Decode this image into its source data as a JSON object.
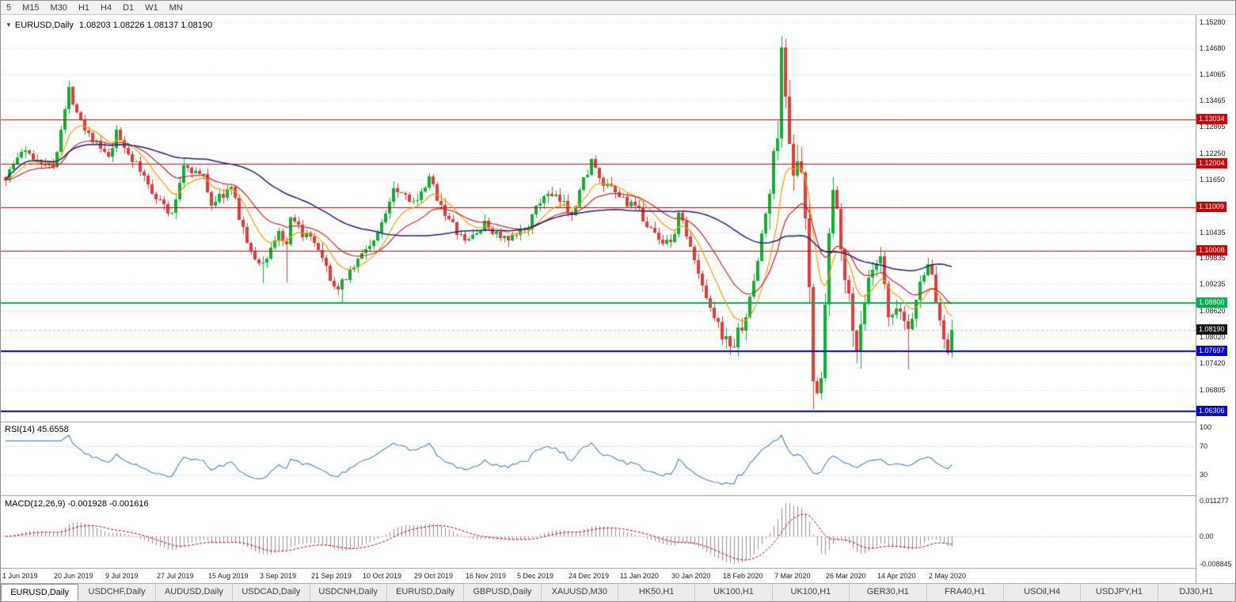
{
  "toolbar": {
    "timeframes": [
      "5",
      "M15",
      "M30",
      "H1",
      "H4",
      "D1",
      "W1",
      "MN"
    ]
  },
  "chart_header": {
    "collapse_arrow": "▼",
    "symbol": "EURUSD,Daily",
    "ohlc": "1.08203 1.08226 1.08137 1.08190"
  },
  "rsi_panel": {
    "label": "RSI(14)",
    "value": "45.6558",
    "scale": [
      "100",
      "70",
      "30"
    ]
  },
  "macd_panel": {
    "label": "MACD(12,26,9)",
    "values": "-0.001928 -0.001616",
    "scale": [
      "0.011277",
      "0.00",
      "-0.008845"
    ]
  },
  "price_scale": {
    "ticks": [
      "1.15280",
      "1.14680",
      "1.14065",
      "1.13465",
      "1.12865",
      "1.12250",
      "1.11650",
      "1.10435",
      "1.09835",
      "1.09235",
      "1.08620",
      "1.08020",
      "1.07420",
      "1.06805"
    ],
    "badges": [
      {
        "text": "1.13034",
        "bg": "#cc0000"
      },
      {
        "text": "1.12004",
        "bg": "#cc0000"
      },
      {
        "text": "1.11009",
        "bg": "#cc0000"
      },
      {
        "text": "1.10008",
        "bg": "#cc0000"
      },
      {
        "text": "1.08800",
        "bg": "#00b050"
      },
      {
        "text": "1.08190",
        "bg": "#151515"
      },
      {
        "text": "1.07697",
        "bg": "#0000d0"
      },
      {
        "text": "1.06306",
        "bg": "#0000d0"
      }
    ]
  },
  "x_axis": {
    "labels": [
      [
        "1 Jun 2019",
        0
      ],
      [
        "20 Jun 2019",
        13
      ],
      [
        "9 Jul 2019",
        26
      ],
      [
        "27 Jul 2019",
        39
      ],
      [
        "15 Aug 2019",
        52
      ],
      [
        "3 Sep 2019",
        65
      ],
      [
        "21 Sep 2019",
        78
      ],
      [
        "10 Oct 2019",
        91
      ],
      [
        "29 Oct 2019",
        104
      ],
      [
        "16 Nov 2019",
        117
      ],
      [
        "5 Dec 2019",
        130
      ],
      [
        "24 Dec 2019",
        143
      ],
      [
        "11 Jan 2020",
        156
      ],
      [
        "30 Jan 2020",
        169
      ],
      [
        "18 Feb 2020",
        182
      ],
      [
        "7 Mar 2020",
        195
      ],
      [
        "26 Mar 2020",
        208
      ],
      [
        "14 Apr 2020",
        221
      ],
      [
        "2 May 2020",
        234
      ]
    ]
  },
  "tab_bar": {
    "active_index": 0,
    "tabs": [
      "EURUSD,Daily",
      "USDCHF,Daily",
      "AUDUSD,Daily",
      "USDCAD,Daily",
      "USDCNH,Daily",
      "EURUSD,Daily",
      "GBPUSD,Daily",
      "XAUUSD,M30",
      "HK50,H1",
      "UK100,H1",
      "UK100,H1",
      "GER30,H1",
      "FRA40,H1",
      "USOil,H4",
      "USDJPY,H1",
      "DJ30,H1"
    ]
  },
  "chart_data": {
    "type": "candlestick",
    "symbol": "EURUSD",
    "timeframe": "Daily",
    "bid": 1.0819,
    "price_range": [
      1.0607,
      1.1542
    ],
    "macd_range": [
      -0.008845,
      0.011277
    ],
    "rsi_levels": [
      70,
      30
    ],
    "colors": {
      "up": "#0cb033",
      "down": "#e13b3b",
      "ma_fast": "#ff9c00",
      "ma_mid": "#cc2222",
      "ma_slow": "#1f1f7a",
      "rsi": "#4a86c8",
      "macd_hist": "#909090",
      "macd_signal": "#cc0000",
      "grid": "#d9d9d9",
      "level": "#c0c0c0"
    },
    "hlines": [
      {
        "price": 1.13034,
        "color": "#cc0000",
        "width": 1
      },
      {
        "price": 1.12004,
        "color": "#cc0000",
        "width": 1
      },
      {
        "price": 1.11009,
        "color": "#cc0000",
        "width": 1
      },
      {
        "price": 1.10008,
        "color": "#cc0000",
        "width": 1
      },
      {
        "price": 1.088,
        "color": "#00b050",
        "width": 2
      },
      {
        "price": 1.07697,
        "color": "#0000d0",
        "width": 2
      },
      {
        "price": 1.06306,
        "color": "#0000d0",
        "width": 2
      }
    ],
    "candles": {
      "count": 240,
      "anchors": [
        [
          0,
          1.117
        ],
        [
          4,
          1.123
        ],
        [
          12,
          1.1195
        ],
        [
          16,
          1.137
        ],
        [
          20,
          1.1285
        ],
        [
          26,
          1.121
        ],
        [
          28,
          1.127
        ],
        [
          37,
          1.114
        ],
        [
          42,
          1.108
        ],
        [
          45,
          1.12
        ],
        [
          50,
          1.117
        ],
        [
          52,
          1.111
        ],
        [
          57,
          1.1145
        ],
        [
          62,
          1.099
        ],
        [
          65,
          1.097
        ],
        [
          69,
          1.1045
        ],
        [
          71,
          1.1005
        ],
        [
          72,
          1.107
        ],
        [
          78,
          1.1015
        ],
        [
          84,
          1.09
        ],
        [
          85,
          1.093
        ],
        [
          91,
          1.1005
        ],
        [
          94,
          1.1035
        ],
        [
          98,
          1.115
        ],
        [
          104,
          1.111
        ],
        [
          107,
          1.1165
        ],
        [
          112,
          1.107
        ],
        [
          116,
          1.102
        ],
        [
          121,
          1.106
        ],
        [
          127,
          1.102
        ],
        [
          132,
          1.106
        ],
        [
          136,
          1.113
        ],
        [
          140,
          1.1115
        ],
        [
          143,
          1.109
        ],
        [
          148,
          1.121
        ],
        [
          150,
          1.116
        ],
        [
          156,
          1.112
        ],
        [
          160,
          1.109
        ],
        [
          165,
          1.1025
        ],
        [
          169,
          1.103
        ],
        [
          170,
          1.1095
        ],
        [
          175,
          1.0945
        ],
        [
          180,
          1.083
        ],
        [
          182,
          1.079
        ],
        [
          184,
          1.0785
        ],
        [
          188,
          1.088
        ],
        [
          190,
          1.0985
        ],
        [
          193,
          1.1135
        ],
        [
          195,
          1.1285
        ],
        [
          196,
          1.145
        ],
        [
          198,
          1.127
        ],
        [
          199,
          1.1185
        ],
        [
          201,
          1.118
        ],
        [
          203,
          1.0915
        ],
        [
          204,
          1.069
        ],
        [
          205,
          1.07
        ],
        [
          206,
          1.0725
        ],
        [
          208,
          1.103
        ],
        [
          209,
          1.114
        ],
        [
          211,
          1.103
        ],
        [
          214,
          1.081
        ],
        [
          215,
          1.079
        ],
        [
          218,
          1.093
        ],
        [
          221,
          1.098
        ],
        [
          223,
          1.084
        ],
        [
          226,
          1.086
        ],
        [
          228,
          1.082
        ],
        [
          232,
          1.0955
        ],
        [
          233,
          1.098
        ],
        [
          236,
          1.084
        ],
        [
          238,
          1.0775
        ],
        [
          239,
          1.0819
        ]
      ],
      "extremes": [
        [
          16,
          "high",
          1.138
        ],
        [
          65,
          "low",
          1.0926
        ],
        [
          71,
          "low",
          1.0927
        ],
        [
          85,
          "low",
          1.0879
        ],
        [
          184,
          "low",
          1.0778
        ],
        [
          196,
          "high",
          1.1495
        ],
        [
          204,
          "low",
          1.0637
        ],
        [
          209,
          "high",
          1.1148
        ],
        [
          215,
          "low",
          1.0768
        ],
        [
          221,
          "high",
          1.099
        ],
        [
          228,
          "low",
          1.0727
        ],
        [
          238,
          "low",
          1.0767
        ]
      ],
      "vol_zones": [
        [
          0,
          180,
          1.0
        ],
        [
          181,
          192,
          1.5
        ],
        [
          193,
          216,
          2.6
        ],
        [
          217,
          239,
          1.5
        ]
      ]
    },
    "moving_averages": [
      {
        "name": "fast",
        "type": "ema",
        "period": 10,
        "color": "#ff9c00"
      },
      {
        "name": "mid",
        "type": "ema",
        "period": 22,
        "color": "#cc2222"
      },
      {
        "name": "slow",
        "type": "sma",
        "period": 50,
        "color": "#1f1f7a"
      }
    ],
    "indicators": {
      "rsi": {
        "period": 14,
        "current": 45.6558
      },
      "macd": {
        "fast": 12,
        "slow": 26,
        "signal_period": 9,
        "current_macd": -0.001928,
        "current_signal": -0.001616
      }
    }
  }
}
